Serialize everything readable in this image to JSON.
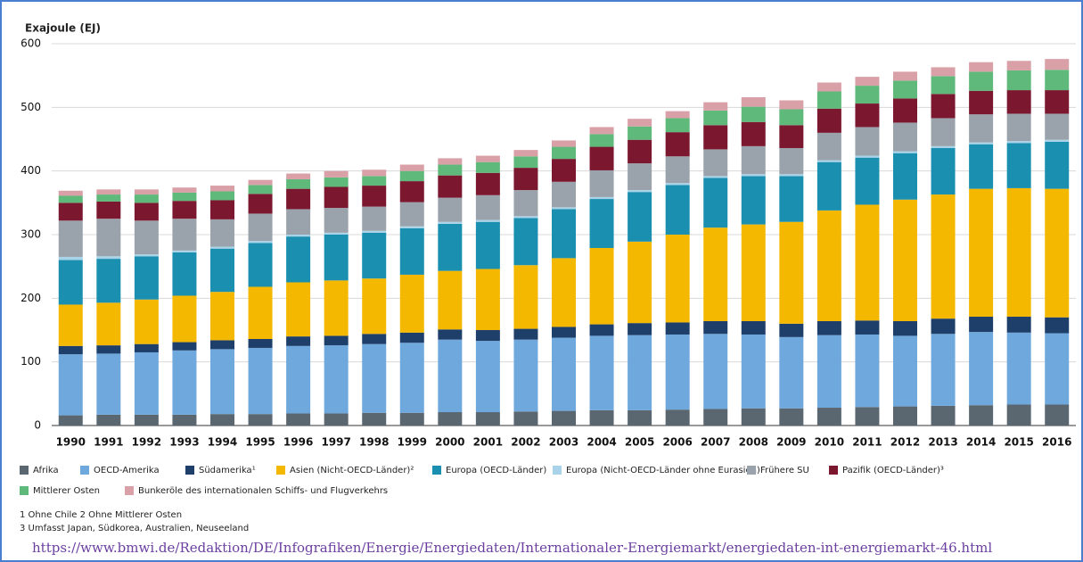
{
  "chart_data": {
    "type": "stacked-bar",
    "y_label": "Exajoule (EJ)",
    "categories": [
      "1990",
      "1991",
      "1992",
      "1993",
      "1994",
      "1995",
      "1996",
      "1997",
      "1998",
      "1999",
      "2000",
      "2001",
      "2002",
      "2003",
      "2004",
      "2005",
      "2006",
      "2007",
      "2008",
      "2009",
      "2010",
      "2011",
      "2012",
      "2013",
      "2014",
      "2015",
      "2016"
    ],
    "series": [
      {
        "name": "Afrika",
        "color": "#5a6770",
        "values": [
          16,
          17,
          17,
          17,
          18,
          18,
          19,
          19,
          20,
          20,
          21,
          21,
          22,
          23,
          24,
          24,
          25,
          26,
          27,
          27,
          28,
          29,
          30,
          31,
          32,
          33,
          33
        ]
      },
      {
        "name": "OECD-Amerika",
        "color": "#6fa8dc",
        "values": [
          96,
          96,
          98,
          101,
          102,
          104,
          106,
          107,
          108,
          110,
          114,
          112,
          113,
          115,
          117,
          118,
          118,
          118,
          116,
          112,
          114,
          114,
          111,
          113,
          115,
          113,
          112
        ]
      },
      {
        "name": "Südamerika¹",
        "color": "#1f3f6b",
        "values": [
          13,
          13,
          13,
          13,
          14,
          14,
          15,
          15,
          16,
          16,
          16,
          17,
          17,
          17,
          18,
          19,
          19,
          20,
          21,
          21,
          22,
          22,
          23,
          24,
          24,
          25,
          25
        ]
      },
      {
        "name": "Asien (Nicht-OECD-Länder)²",
        "color": "#f5b800",
        "values": [
          65,
          67,
          70,
          73,
          76,
          82,
          85,
          87,
          87,
          91,
          92,
          96,
          100,
          108,
          120,
          128,
          138,
          147,
          152,
          160,
          174,
          182,
          191,
          195,
          201,
          202,
          202
        ]
      },
      {
        "name": "Europa (OECD-Länder)",
        "color": "#1a8fb0",
        "values": [
          70,
          69,
          68,
          68,
          68,
          69,
          72,
          72,
          72,
          73,
          74,
          74,
          74,
          77,
          77,
          78,
          78,
          78,
          76,
          72,
          76,
          74,
          73,
          73,
          70,
          71,
          74
        ]
      },
      {
        "name": "Europa (Nicht-OECD-Länder ohne Eurasien)",
        "color": "#a8d3e8",
        "values": [
          5,
          4,
          3,
          3,
          3,
          3,
          3,
          3,
          3,
          3,
          3,
          3,
          3,
          3,
          3,
          3,
          3,
          3,
          3,
          3,
          3,
          3,
          3,
          3,
          3,
          3,
          3
        ]
      },
      {
        "name": "Frühere SU",
        "color": "#9aa3ab",
        "values": [
          57,
          59,
          53,
          50,
          43,
          43,
          40,
          39,
          38,
          38,
          38,
          39,
          41,
          40,
          42,
          42,
          42,
          42,
          44,
          41,
          43,
          45,
          45,
          44,
          44,
          43,
          41
        ]
      },
      {
        "name": "Pazifik (OECD-Länder)³",
        "color": "#7b1830",
        "values": [
          28,
          27,
          28,
          28,
          30,
          31,
          32,
          33,
          33,
          33,
          35,
          35,
          35,
          36,
          37,
          37,
          38,
          38,
          38,
          36,
          38,
          37,
          38,
          38,
          37,
          37,
          37
        ]
      },
      {
        "name": "Mittlerer Osten",
        "color": "#5fb97a",
        "values": [
          11,
          11,
          13,
          13,
          14,
          14,
          15,
          15,
          15,
          16,
          17,
          17,
          18,
          19,
          20,
          21,
          22,
          23,
          24,
          25,
          27,
          28,
          28,
          28,
          30,
          31,
          32
        ]
      },
      {
        "name": "Bunkeröle des internationalen Schiffs- und Flugverkehrs",
        "color": "#d9a0a8",
        "values": [
          8,
          8,
          8,
          8,
          9,
          8,
          9,
          10,
          10,
          10,
          10,
          10,
          10,
          10,
          11,
          12,
          11,
          13,
          15,
          14,
          14,
          14,
          14,
          14,
          15,
          15,
          17
        ]
      }
    ],
    "ylim": [
      0,
      600
    ],
    "yticks": [
      0,
      100,
      200,
      300,
      400,
      500,
      600
    ],
    "grid": true,
    "footnotes": [
      "1 Ohne Chile   2 Ohne Mittlerer Osten",
      "3 Umfasst Japan, Südkorea, Australien, Neuseeland"
    ],
    "source_url": "https://www.bmwi.de/Redaktion/DE/Infografiken/Energie/Energiedaten/Internationaler-Energiemarkt/energiedaten-int-energiemarkt-46.html"
  }
}
